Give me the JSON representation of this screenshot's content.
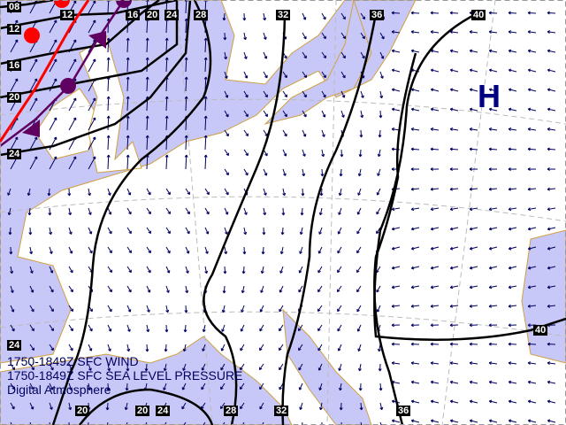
{
  "captions": {
    "wind": "1750-1849Z SFC WIND",
    "pressure": "1750-1849Z SFC SEA LEVEL PRESSURE",
    "credit": "Digital Atmosphere"
  },
  "high_pressure_label": "H",
  "isobar_labels": {
    "top": [
      "08",
      "12",
      "16",
      "20",
      "24",
      "28",
      "32",
      "36",
      "40"
    ],
    "left": [
      "12",
      "16",
      "20",
      "24"
    ],
    "right": [
      "40"
    ],
    "bottom": [
      "24",
      "20",
      "20",
      "24",
      "28",
      "32",
      "36"
    ]
  },
  "colors": {
    "sea": "#c8c8f8",
    "land": "#ffffff",
    "coast": "#d0a040",
    "isobar": "#000000",
    "wind": "#000060",
    "warm_front": "#ff0000",
    "occluded_front": "#600060",
    "high": "#000080"
  }
}
